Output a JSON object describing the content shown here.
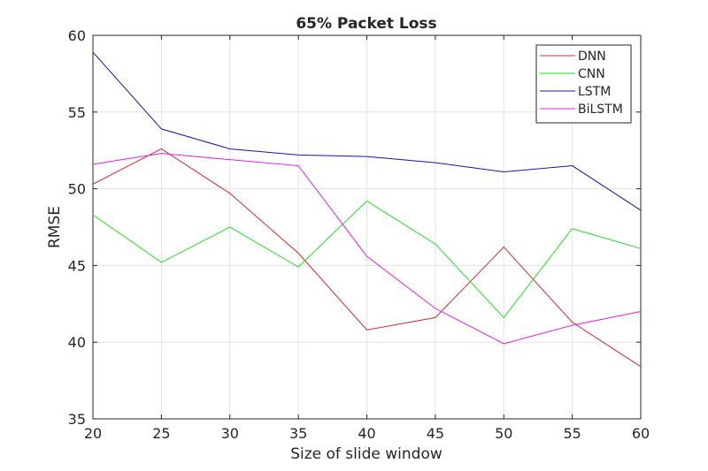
{
  "chart_data": {
    "type": "line",
    "title": "65% Packet Loss",
    "xlabel": "Size of slide window",
    "ylabel": "RMSE",
    "x": [
      20,
      25,
      30,
      35,
      40,
      45,
      50,
      55,
      60
    ],
    "xlim": [
      20,
      60
    ],
    "ylim": [
      35,
      60
    ],
    "xticks": [
      20,
      25,
      30,
      35,
      40,
      45,
      50,
      55,
      60
    ],
    "yticks": [
      35,
      40,
      45,
      50,
      55,
      60
    ],
    "grid": true,
    "legend_position": "top-right",
    "series": [
      {
        "name": "DNN",
        "color": "#d62728",
        "values": [
          50.3,
          52.6,
          49.7,
          45.8,
          40.8,
          41.6,
          46.2,
          41.3,
          38.4
        ]
      },
      {
        "name": "CNN",
        "color": "#22e022",
        "values": [
          48.3,
          45.2,
          47.5,
          44.9,
          49.2,
          46.4,
          41.6,
          47.4,
          46.1
        ]
      },
      {
        "name": "LSTM",
        "color": "#1515b5",
        "values": [
          58.9,
          53.9,
          52.6,
          52.2,
          52.1,
          51.7,
          51.1,
          51.5,
          48.6
        ]
      },
      {
        "name": "BiLSTM",
        "color": "#e020e0",
        "values": [
          51.6,
          52.3,
          51.9,
          51.5,
          45.6,
          42.2,
          39.9,
          41.1,
          42.0
        ]
      }
    ]
  }
}
